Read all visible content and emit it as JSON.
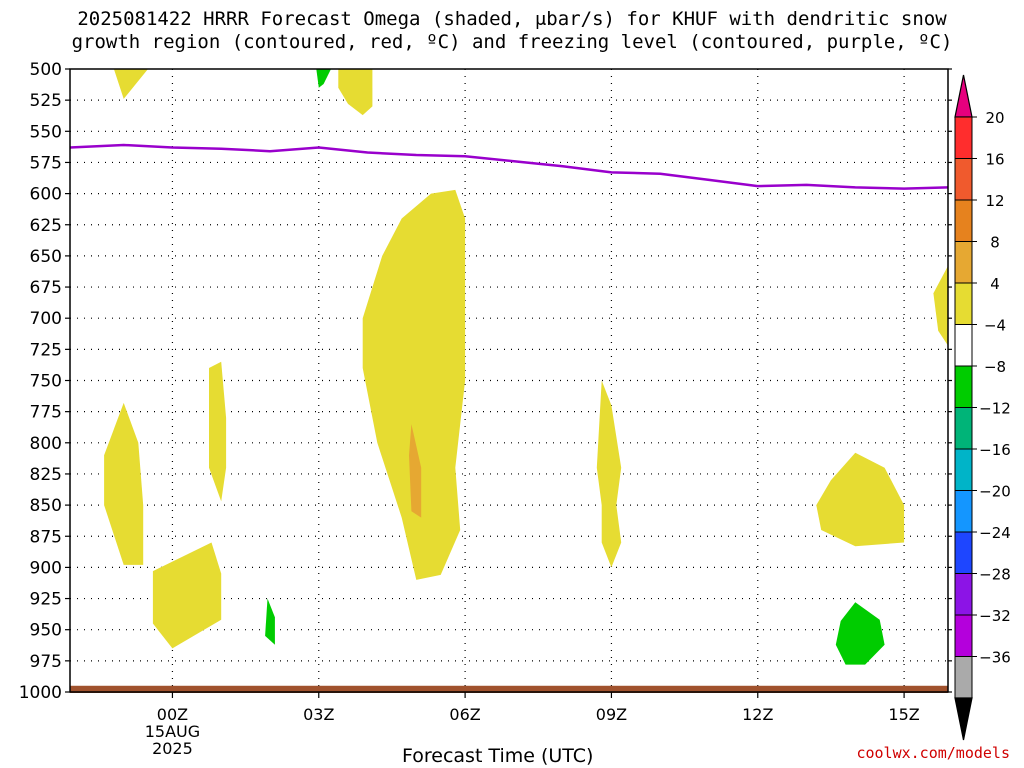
{
  "title_line1": "2025081422 HRRR Forecast Omega (shaded, μbar/s) for KHUF with dendritic snow",
  "title_line2": "growth region (contoured, red, ºC) and freezing level (contoured, purple, ºC)",
  "credit": "coolwx.com/models",
  "chart_data": {
    "type": "contour",
    "xlabel": "Forecast Time (UTC)",
    "ylabel": "",
    "x_unit": "hours relative to 2025-08-15 00Z",
    "xlim": [
      -2.1,
      15.9
    ],
    "ylim": [
      1000,
      500
    ],
    "y_ticks": [
      500,
      525,
      550,
      575,
      600,
      625,
      650,
      675,
      700,
      725,
      750,
      775,
      800,
      825,
      850,
      875,
      900,
      925,
      950,
      975,
      1000
    ],
    "x_ticks": [
      {
        "x": 0,
        "label": "00Z",
        "sub1": "15AUG",
        "sub2": "2025"
      },
      {
        "x": 3,
        "label": "03Z",
        "sub1": "",
        "sub2": ""
      },
      {
        "x": 6,
        "label": "06Z",
        "sub1": "",
        "sub2": ""
      },
      {
        "x": 9,
        "label": "09Z",
        "sub1": "",
        "sub2": ""
      },
      {
        "x": 12,
        "label": "12Z",
        "sub1": "",
        "sub2": ""
      },
      {
        "x": 15,
        "label": "15Z",
        "sub1": "",
        "sub2": ""
      }
    ],
    "grid": true,
    "freezing_level": {
      "color": "#9900cc",
      "points": [
        [
          -2.1,
          563
        ],
        [
          -1.0,
          561
        ],
        [
          0,
          563
        ],
        [
          1,
          564
        ],
        [
          2,
          566
        ],
        [
          3,
          563
        ],
        [
          4,
          567
        ],
        [
          5,
          569
        ],
        [
          6,
          570
        ],
        [
          7,
          574
        ],
        [
          8,
          578
        ],
        [
          9,
          583
        ],
        [
          10,
          584
        ],
        [
          11,
          589
        ],
        [
          12,
          594
        ],
        [
          13,
          593
        ],
        [
          14,
          595
        ],
        [
          15,
          596
        ],
        [
          15.9,
          595
        ]
      ]
    },
    "omega_regions": [
      {
        "level": "4 to 8",
        "color": "#e6dc32",
        "points": [
          [
            -1.2,
            500
          ],
          [
            -0.5,
            500
          ],
          [
            -1.0,
            524
          ]
        ]
      },
      {
        "level": "4 to 8",
        "color": "#e6dc32",
        "points": [
          [
            3.4,
            500
          ],
          [
            4.1,
            500
          ],
          [
            4.1,
            530
          ],
          [
            3.9,
            537
          ],
          [
            3.6,
            528
          ],
          [
            3.4,
            515
          ]
        ]
      },
      {
        "level": "4 to 8",
        "color": "#e6dc32",
        "points": [
          [
            5.8,
            597
          ],
          [
            6.0,
            620
          ],
          [
            6.0,
            680
          ],
          [
            6.0,
            750
          ],
          [
            5.8,
            820
          ],
          [
            5.9,
            870
          ],
          [
            5.5,
            906
          ],
          [
            5.0,
            910
          ],
          [
            4.7,
            860
          ],
          [
            4.2,
            800
          ],
          [
            3.9,
            740
          ],
          [
            3.9,
            700
          ],
          [
            4.3,
            650
          ],
          [
            4.7,
            620
          ],
          [
            5.3,
            600
          ]
        ]
      },
      {
        "level": "4 to 8",
        "color": "#e6dc32",
        "points": [
          [
            -1.0,
            768
          ],
          [
            -0.7,
            800
          ],
          [
            -0.6,
            850
          ],
          [
            -0.6,
            898
          ],
          [
            -1.0,
            898
          ],
          [
            -1.4,
            850
          ],
          [
            -1.4,
            810
          ]
        ]
      },
      {
        "level": "4 to 8",
        "color": "#e6dc32",
        "points": [
          [
            0.75,
            740
          ],
          [
            1.0,
            735
          ],
          [
            1.1,
            780
          ],
          [
            1.1,
            820
          ],
          [
            1.0,
            847
          ],
          [
            0.75,
            820
          ],
          [
            0.75,
            780
          ]
        ]
      },
      {
        "level": "4 to 8",
        "color": "#e6dc32",
        "points": [
          [
            -0.4,
            903
          ],
          [
            0.8,
            880
          ],
          [
            1.0,
            905
          ],
          [
            1.0,
            942
          ],
          [
            0,
            965
          ],
          [
            -0.4,
            945
          ]
        ]
      },
      {
        "level": "4 to 8",
        "color": "#e6dc32",
        "points": [
          [
            8.8,
            750
          ],
          [
            9.0,
            770
          ],
          [
            9.2,
            820
          ],
          [
            9.1,
            850
          ],
          [
            9.2,
            880
          ],
          [
            9.0,
            900
          ],
          [
            8.8,
            880
          ],
          [
            8.8,
            850
          ],
          [
            8.7,
            820
          ]
        ]
      },
      {
        "level": "4 to 8",
        "color": "#e6dc32",
        "points": [
          [
            14.0,
            808
          ],
          [
            14.6,
            820
          ],
          [
            15.0,
            850
          ],
          [
            15.0,
            880
          ],
          [
            14.0,
            883
          ],
          [
            13.3,
            870
          ],
          [
            13.2,
            850
          ],
          [
            13.5,
            830
          ]
        ]
      },
      {
        "level": "4 to 8",
        "color": "#e6dc32",
        "points": [
          [
            15.9,
            658
          ],
          [
            15.9,
            722
          ],
          [
            15.7,
            710
          ],
          [
            15.6,
            680
          ]
        ]
      },
      {
        "level": "8 to 12",
        "color": "#e6a832",
        "points": [
          [
            4.9,
            785
          ],
          [
            5.1,
            820
          ],
          [
            5.1,
            860
          ],
          [
            4.9,
            855
          ],
          [
            4.85,
            810
          ]
        ]
      },
      {
        "level": "-4 to -8",
        "color": "#00cc00",
        "points": [
          [
            2.95,
            500
          ],
          [
            3.25,
            500
          ],
          [
            3.1,
            512
          ],
          [
            3.0,
            515
          ]
        ]
      },
      {
        "level": "-4 to -8",
        "color": "#00cc00",
        "points": [
          [
            1.95,
            925
          ],
          [
            2.1,
            940
          ],
          [
            2.1,
            962
          ],
          [
            1.9,
            955
          ]
        ]
      },
      {
        "level": "-4 to -8",
        "color": "#00cc00",
        "points": [
          [
            14.0,
            928
          ],
          [
            14.5,
            942
          ],
          [
            14.6,
            962
          ],
          [
            14.2,
            978
          ],
          [
            13.8,
            978
          ],
          [
            13.6,
            962
          ],
          [
            13.7,
            943
          ]
        ]
      }
    ],
    "ground": {
      "color": "#a0522d",
      "pressure_top": 995
    }
  },
  "colorbar": {
    "labels": [
      "20",
      "16",
      "12",
      "8",
      "4",
      "−4",
      "−8",
      "−12",
      "−16",
      "−20",
      "−24",
      "−28",
      "−32",
      "−36"
    ],
    "top_cap_color": "#e6007e",
    "bottom_cap_color": "#000000",
    "segments": [
      "#ff2d2d",
      "#f05a2d",
      "#e6821e",
      "#e6a832",
      "#e6dc32",
      "#ffffff",
      "#00cc00",
      "#00b478",
      "#00b4c8",
      "#1496ff",
      "#1e46ff",
      "#8c14e6",
      "#b400dc",
      "#aaaaaa"
    ]
  }
}
